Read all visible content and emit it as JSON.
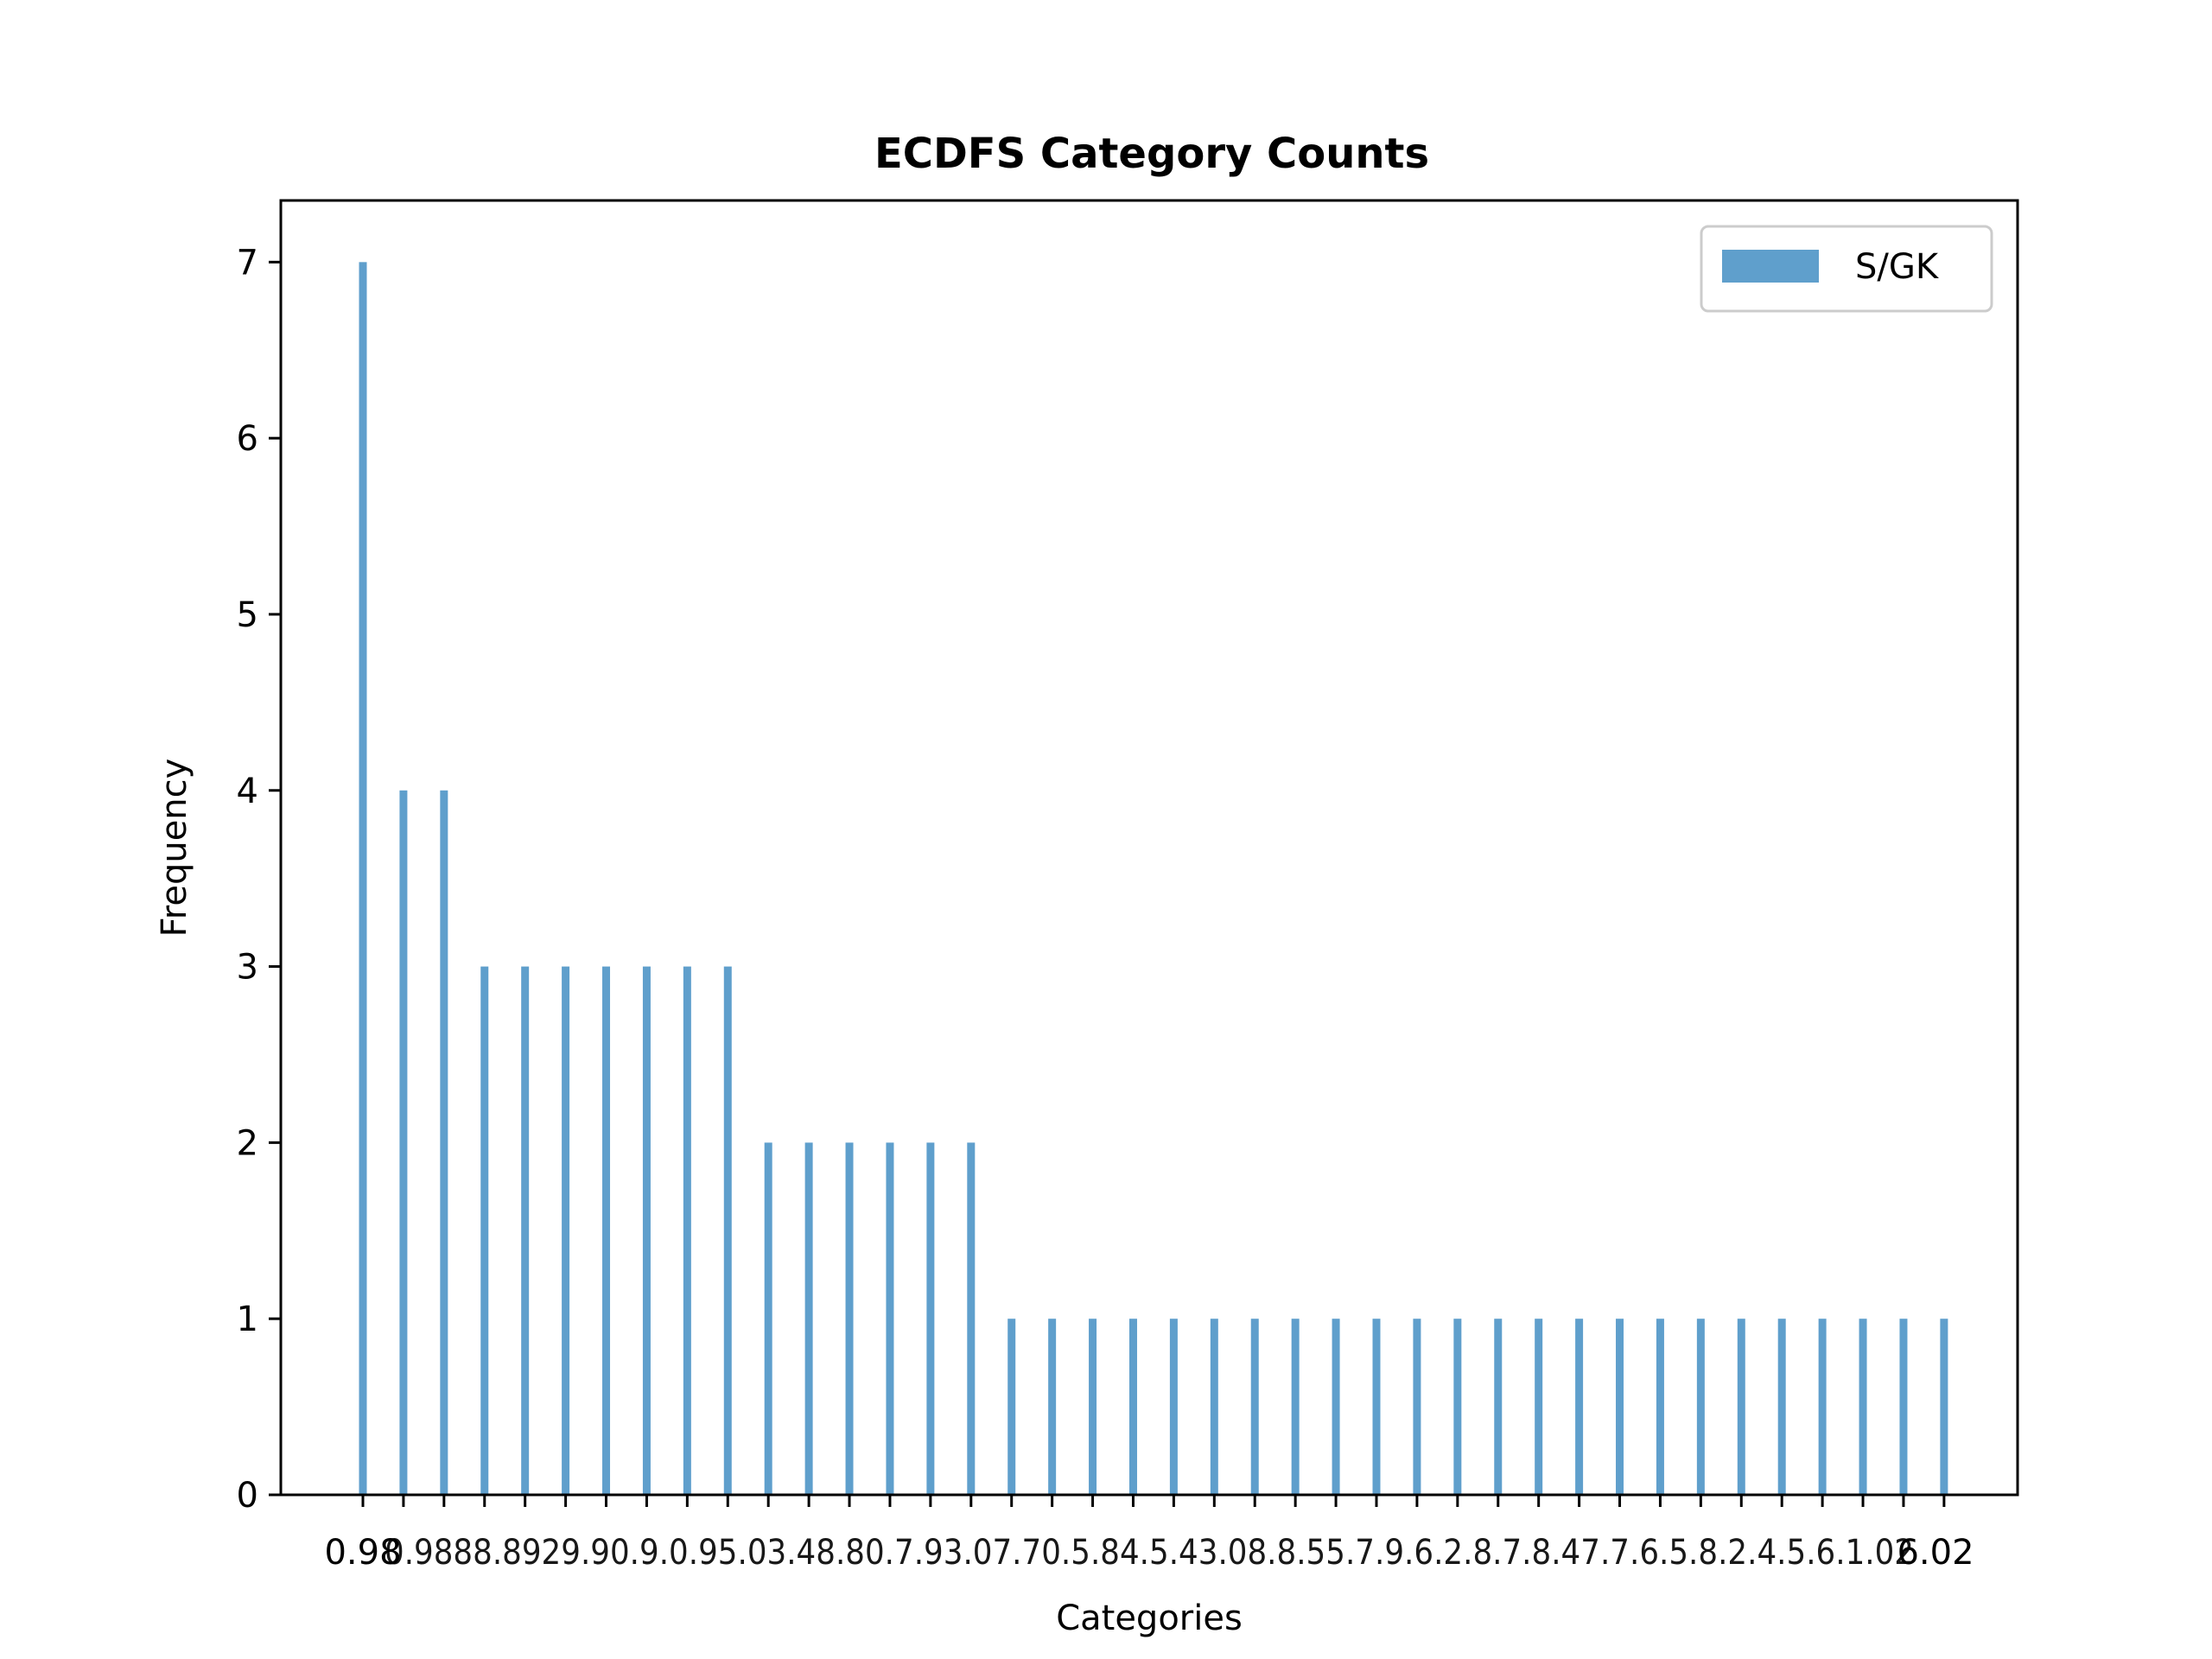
{
  "chart_data": {
    "type": "bar",
    "title": "ECDFS Category Counts",
    "xlabel": "Categories",
    "ylabel": "Frequency",
    "ylim": [
      0,
      7.35
    ],
    "yticks": [
      "0",
      "1",
      "2",
      "3",
      "4",
      "5",
      "6",
      "7"
    ],
    "grid": false,
    "legend_position": "top-right",
    "series": [
      {
        "name": "S/GK",
        "color": "#5f9fcc",
        "values": [
          7,
          4,
          4,
          3,
          3,
          3,
          3,
          3,
          3,
          3,
          2,
          2,
          2,
          2,
          2,
          2,
          1,
          1,
          1,
          1,
          1,
          1,
          1,
          1,
          1,
          1,
          1,
          1,
          1,
          1,
          1,
          1,
          1,
          1,
          1,
          1,
          1,
          1,
          1,
          1
        ]
      }
    ],
    "first_tick_label": "0.98",
    "last_tick_label": "6.02",
    "tick_labels_visible": "0.9888.8929.90.9.0.95.03.48.80.7.93.07.70.5.84.5.43.08.8.55.7.9.6.2.8.7.8.47.7.6.5.8.2.4.5.6.1.02"
  }
}
